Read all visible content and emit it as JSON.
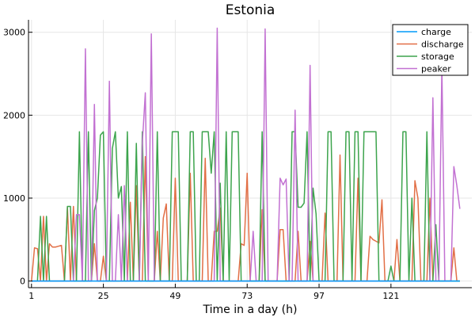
{
  "chart_data": {
    "type": "line",
    "title": "Estonia",
    "xlabel": "Time in a day (h)",
    "ylabel": "",
    "xlim": [
      0,
      148
    ],
    "ylim": [
      -80,
      3150
    ],
    "xticks": [
      1,
      25,
      49,
      73,
      97,
      121
    ],
    "yticks": [
      0,
      1000,
      2000,
      3000
    ],
    "grid": true,
    "legend_position": "top-right",
    "series": [
      {
        "name": "charge",
        "color": "#009af9",
        "x": [
          1,
          144
        ],
        "y": [
          0,
          0
        ]
      },
      {
        "name": "discharge",
        "color": "#e26f46",
        "x": [
          1,
          2,
          3,
          4,
          5,
          6,
          7,
          8,
          9,
          10,
          11,
          12,
          13,
          14,
          15,
          16,
          17,
          18,
          19,
          20,
          21,
          22,
          23,
          24,
          25,
          26,
          27,
          28,
          29,
          30,
          31,
          32,
          33,
          34,
          35,
          36,
          37,
          38,
          39,
          40,
          41,
          42,
          43,
          44,
          45,
          46,
          47,
          48,
          49,
          50,
          51,
          52,
          53,
          54,
          55,
          56,
          57,
          58,
          59,
          60,
          61,
          62,
          63,
          64,
          65,
          66,
          67,
          68,
          69,
          70,
          71,
          72,
          73,
          74,
          75,
          76,
          77,
          78,
          79,
          80,
          81,
          82,
          83,
          84,
          85,
          86,
          87,
          88,
          89,
          90,
          91,
          92,
          93,
          94,
          95,
          96,
          97,
          98,
          99,
          100,
          101,
          102,
          103,
          104,
          105,
          106,
          107,
          108,
          109,
          110,
          111,
          112,
          113,
          114,
          115,
          116,
          117,
          118,
          119,
          120,
          121,
          122,
          123,
          124,
          125,
          126,
          127,
          128,
          129,
          130,
          131,
          132,
          133,
          134,
          135,
          136,
          137,
          138,
          139,
          140,
          141,
          142,
          143,
          144
        ],
        "y": [
          0,
          400,
          390,
          0,
          780,
          0,
          450,
          410,
          410,
          420,
          430,
          0,
          890,
          0,
          900,
          0,
          0,
          0,
          0,
          0,
          0,
          450,
          0,
          0,
          300,
          0,
          0,
          0,
          0,
          0,
          0,
          0,
          0,
          950,
          0,
          1150,
          0,
          0,
          1500,
          0,
          0,
          0,
          600,
          0,
          760,
          930,
          0,
          0,
          1240,
          0,
          0,
          0,
          0,
          1300,
          0,
          0,
          0,
          0,
          1480,
          0,
          0,
          600,
          600,
          880,
          0,
          0,
          0,
          0,
          0,
          0,
          450,
          430,
          1300,
          0,
          0,
          0,
          0,
          860,
          0,
          0,
          0,
          0,
          0,
          620,
          620,
          0,
          0,
          0,
          0,
          600,
          0,
          0,
          0,
          480,
          0,
          0,
          0,
          0,
          820,
          0,
          0,
          0,
          0,
          1520,
          0,
          0,
          0,
          0,
          0,
          1240,
          0,
          0,
          0,
          540,
          500,
          480,
          460,
          980,
          0,
          0,
          0,
          0,
          500,
          0,
          0,
          0,
          0,
          0,
          1210,
          1000,
          0,
          0,
          0,
          1000,
          0,
          0,
          0,
          0,
          0,
          0,
          0,
          400,
          0,
          0
        ]
      },
      {
        "name": "storage",
        "color": "#3da44d",
        "x": [
          1,
          2,
          3,
          4,
          5,
          6,
          7,
          8,
          9,
          10,
          11,
          12,
          13,
          14,
          15,
          16,
          17,
          18,
          19,
          20,
          21,
          22,
          23,
          24,
          25,
          26,
          27,
          28,
          29,
          30,
          31,
          32,
          33,
          34,
          35,
          36,
          37,
          38,
          39,
          40,
          41,
          42,
          43,
          44,
          45,
          46,
          47,
          48,
          49,
          50,
          51,
          52,
          53,
          54,
          55,
          56,
          57,
          58,
          59,
          60,
          61,
          62,
          63,
          64,
          65,
          66,
          67,
          68,
          69,
          70,
          71,
          72,
          73,
          74,
          75,
          76,
          77,
          78,
          79,
          80,
          81,
          82,
          83,
          84,
          85,
          86,
          87,
          88,
          89,
          90,
          91,
          92,
          93,
          94,
          95,
          96,
          97,
          98,
          99,
          100,
          101,
          102,
          103,
          104,
          105,
          106,
          107,
          108,
          109,
          110,
          111,
          112,
          113,
          114,
          115,
          116,
          117,
          118,
          119,
          120,
          121,
          122,
          123,
          124,
          125,
          126,
          127,
          128,
          129,
          130,
          131,
          132,
          133,
          134,
          135,
          136,
          137,
          138,
          139,
          140,
          141,
          142,
          143,
          144
        ],
        "y": [
          0,
          0,
          0,
          780,
          0,
          780,
          0,
          0,
          0,
          0,
          0,
          0,
          900,
          900,
          0,
          0,
          1800,
          0,
          0,
          1800,
          0,
          850,
          1000,
          1760,
          1800,
          0,
          0,
          1600,
          1800,
          1000,
          1140,
          0,
          1800,
          0,
          0,
          1660,
          0,
          1800,
          0,
          0,
          0,
          0,
          1800,
          0,
          0,
          0,
          0,
          1800,
          1800,
          1800,
          0,
          0,
          0,
          1800,
          1800,
          0,
          0,
          1800,
          1800,
          1800,
          1300,
          1800,
          0,
          1180,
          0,
          1800,
          0,
          1800,
          1800,
          1800,
          0,
          0,
          0,
          0,
          0,
          0,
          0,
          1800,
          0,
          0,
          0,
          0,
          0,
          0,
          0,
          0,
          0,
          1800,
          1800,
          890,
          890,
          940,
          1800,
          0,
          1120,
          810,
          0,
          0,
          0,
          1800,
          1800,
          0,
          0,
          0,
          0,
          1800,
          1800,
          0,
          1800,
          1800,
          0,
          1800,
          1800,
          1800,
          1800,
          1800,
          0,
          0,
          0,
          0,
          180,
          0,
          0,
          0,
          1800,
          1800,
          0,
          1000,
          0,
          0,
          0,
          0,
          1800,
          0,
          0,
          680,
          0,
          0,
          0,
          0,
          0,
          0,
          0,
          0
        ]
      },
      {
        "name": "peaker",
        "color": "#c271d2",
        "x": [
          1,
          2,
          3,
          4,
          5,
          6,
          7,
          8,
          9,
          10,
          11,
          12,
          13,
          14,
          15,
          16,
          17,
          18,
          19,
          20,
          21,
          22,
          23,
          24,
          25,
          26,
          27,
          28,
          29,
          30,
          31,
          32,
          33,
          34,
          35,
          36,
          37,
          38,
          39,
          40,
          41,
          42,
          43,
          44,
          45,
          46,
          47,
          48,
          49,
          50,
          51,
          52,
          53,
          54,
          55,
          56,
          57,
          58,
          59,
          60,
          61,
          62,
          63,
          64,
          65,
          66,
          67,
          68,
          69,
          70,
          71,
          72,
          73,
          74,
          75,
          76,
          77,
          78,
          79,
          80,
          81,
          82,
          83,
          84,
          85,
          86,
          87,
          88,
          89,
          90,
          91,
          92,
          93,
          94,
          95,
          96,
          97,
          98,
          99,
          100,
          101,
          102,
          103,
          104,
          105,
          106,
          107,
          108,
          109,
          110,
          111,
          112,
          113,
          114,
          115,
          116,
          117,
          118,
          119,
          120,
          121,
          122,
          123,
          124,
          125,
          126,
          127,
          128,
          129,
          130,
          131,
          132,
          133,
          134,
          135,
          136,
          137,
          138,
          139,
          140,
          141,
          142,
          143,
          144
        ],
        "y": [
          0,
          0,
          0,
          0,
          0,
          0,
          0,
          0,
          0,
          0,
          0,
          0,
          0,
          0,
          0,
          800,
          800,
          0,
          2800,
          0,
          0,
          2130,
          0,
          0,
          0,
          0,
          2410,
          0,
          0,
          800,
          0,
          1150,
          0,
          0,
          0,
          0,
          0,
          1660,
          2270,
          0,
          2980,
          0,
          0,
          0,
          0,
          0,
          0,
          0,
          0,
          0,
          0,
          0,
          0,
          0,
          0,
          0,
          0,
          0,
          0,
          0,
          0,
          0,
          3050,
          0,
          0,
          0,
          0,
          0,
          0,
          0,
          0,
          0,
          0,
          0,
          600,
          0,
          0,
          0,
          3040,
          0,
          0,
          0,
          0,
          1240,
          1160,
          1230,
          0,
          0,
          2060,
          0,
          0,
          0,
          0,
          2600,
          0,
          0,
          0,
          0,
          0,
          0,
          0,
          0,
          0,
          0,
          0,
          0,
          0,
          0,
          0,
          0,
          0,
          0,
          0,
          0,
          0,
          0,
          0,
          0,
          0,
          0,
          0,
          0,
          0,
          0,
          0,
          0,
          0,
          0,
          0,
          0,
          0,
          0,
          0,
          0,
          2210,
          0,
          0,
          2580,
          0,
          0,
          0,
          1380,
          1150,
          870
        ]
      }
    ]
  }
}
